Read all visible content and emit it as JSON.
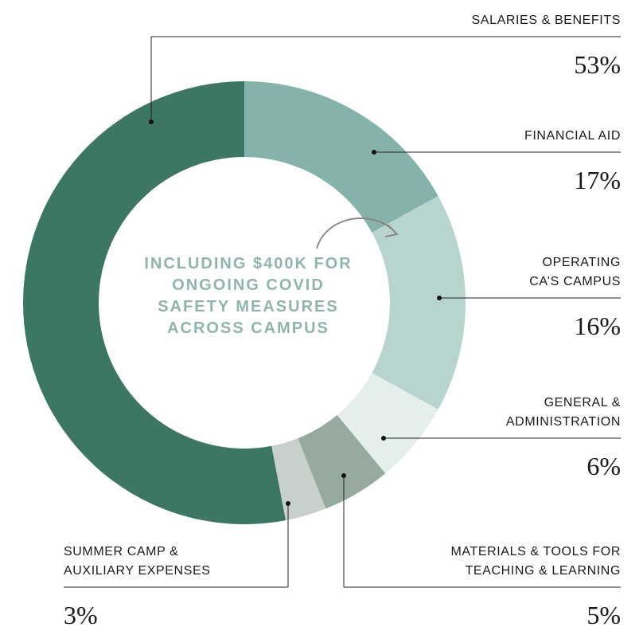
{
  "chart_data": {
    "type": "donut",
    "categories": [
      "SALARIES & BENEFITS",
      "FINANCIAL AID",
      "OPERATING CA’S CAMPUS",
      "GENERAL & ADMINISTRATION",
      "MATERIALS & TOOLS FOR TEACHING & LEARNING",
      "SUMMER CAMP & AUXILIARY EXPENSES"
    ],
    "values": [
      53,
      17,
      16,
      6,
      5,
      3
    ],
    "value_labels": [
      "53%",
      "17%",
      "16%",
      "6%",
      "5%",
      "3%"
    ],
    "colors": [
      "#3d7763",
      "#85b2ab",
      "#b8d4cf",
      "#e4eeeb",
      "#97aaa0",
      "#c8d0cb"
    ],
    "annotation": "INCLUDING $400K FOR ONGOING COVID SAFETY MEASURES ACROSS CAMPUS"
  }
}
